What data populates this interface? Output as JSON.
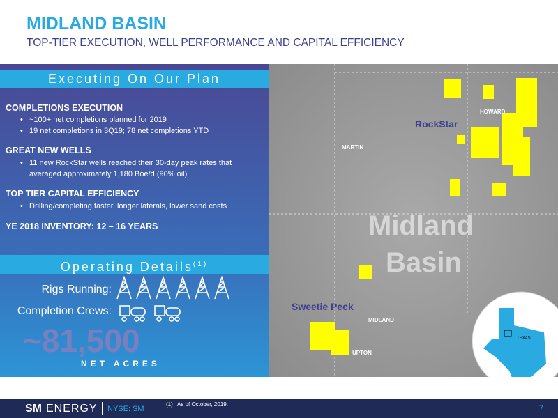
{
  "header": {
    "title": "MIDLAND BASIN",
    "subtitle": "TOP-TIER EXECUTION, WELL PERFORMANCE AND CAPITAL EFFICIENCY"
  },
  "plan": {
    "heading": "Executing On Our Plan",
    "sections": [
      {
        "title": "COMPLETIONS EXECUTION",
        "bullets": [
          "~100+ net completions planned for 2019",
          "19 net completions in 3Q19; 78 net completions YTD"
        ]
      },
      {
        "title": "GREAT NEW WELLS",
        "bullets": [
          "11 new RockStar wells reached their 30-day peak rates that averaged approximately 1,180 Boe/d (90% oil)"
        ]
      },
      {
        "title": "TOP TIER CAPITAL EFFICIENCY",
        "bullets": [
          "Drilling/completing faster, longer laterals, lower sand costs"
        ]
      },
      {
        "title": "YE 2018 INVENTORY: 12 – 16 YEARS"
      }
    ]
  },
  "operating": {
    "heading": "Operating Details",
    "footnote_mark": "(1)",
    "rigs_label": "Rigs Running:",
    "crews_label": "Completion Crews:",
    "acreage": "~81,500",
    "acreage_label": "NET ACRES"
  },
  "map": {
    "counties": [
      "HOWARD",
      "MARTIN",
      "MIDLAND",
      "UPTON"
    ],
    "areas": [
      "RockStar",
      "Sweetie Peck"
    ],
    "watermark": [
      "Midland",
      "Basin"
    ],
    "inset": "TEXAS"
  },
  "footer": {
    "logo_bold": "SM",
    "logo_light": "ENERGY",
    "ticker": "NYSE: SM",
    "footnote": "(1)   As of October, 2019.",
    "page": "7"
  }
}
